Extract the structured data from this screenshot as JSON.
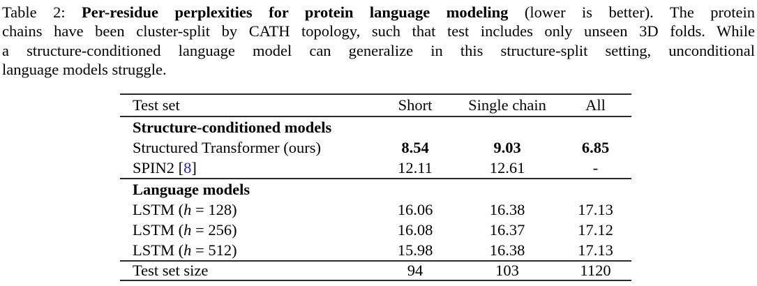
{
  "colors": {
    "text": "#000000",
    "rule": "#2a2a2a",
    "citation_link": "#2323c8"
  },
  "caption": {
    "line1_prefix": "Table 2: ",
    "line1_bold": "Per-residue perplexities for protein language modeling",
    "line1_suffix": " (lower is better).  The protein",
    "line2": "chains have been cluster-split by CATH topology, such that test includes only unseen 3D folds. While",
    "line3": "a structure-conditioned language model can generalize in this structure-split setting, unconditional",
    "line4": "language models struggle."
  },
  "table": {
    "header": [
      "Test set",
      "Short",
      "Single chain",
      "All"
    ],
    "section1": "Structure-conditioned models",
    "transformer": {
      "label": "Structured Transformer (ours)",
      "short": "8.54",
      "single_chain": "9.03",
      "all": "6.85"
    },
    "spin2": {
      "label_prefix": "SPIN2 [",
      "citation": "8",
      "label_suffix": "]",
      "short": "12.11",
      "single_chain": "12.61",
      "all": "-"
    },
    "section2": "Language models",
    "lstm_rows": [
      {
        "prefix": "LSTM (",
        "var": "h",
        "suffix": " = 128)",
        "short": "16.06",
        "single_chain": "16.38",
        "all": "17.13"
      },
      {
        "prefix": "LSTM (",
        "var": "h",
        "suffix": " = 256)",
        "short": "16.08",
        "single_chain": "16.37",
        "all": "17.12"
      },
      {
        "prefix": "LSTM (",
        "var": "h",
        "suffix": " = 512)",
        "short": "15.98",
        "single_chain": "16.38",
        "all": "17.13"
      }
    ],
    "footer": {
      "label": "Test set size",
      "short": "94",
      "single_chain": "103",
      "all": "1120"
    }
  }
}
